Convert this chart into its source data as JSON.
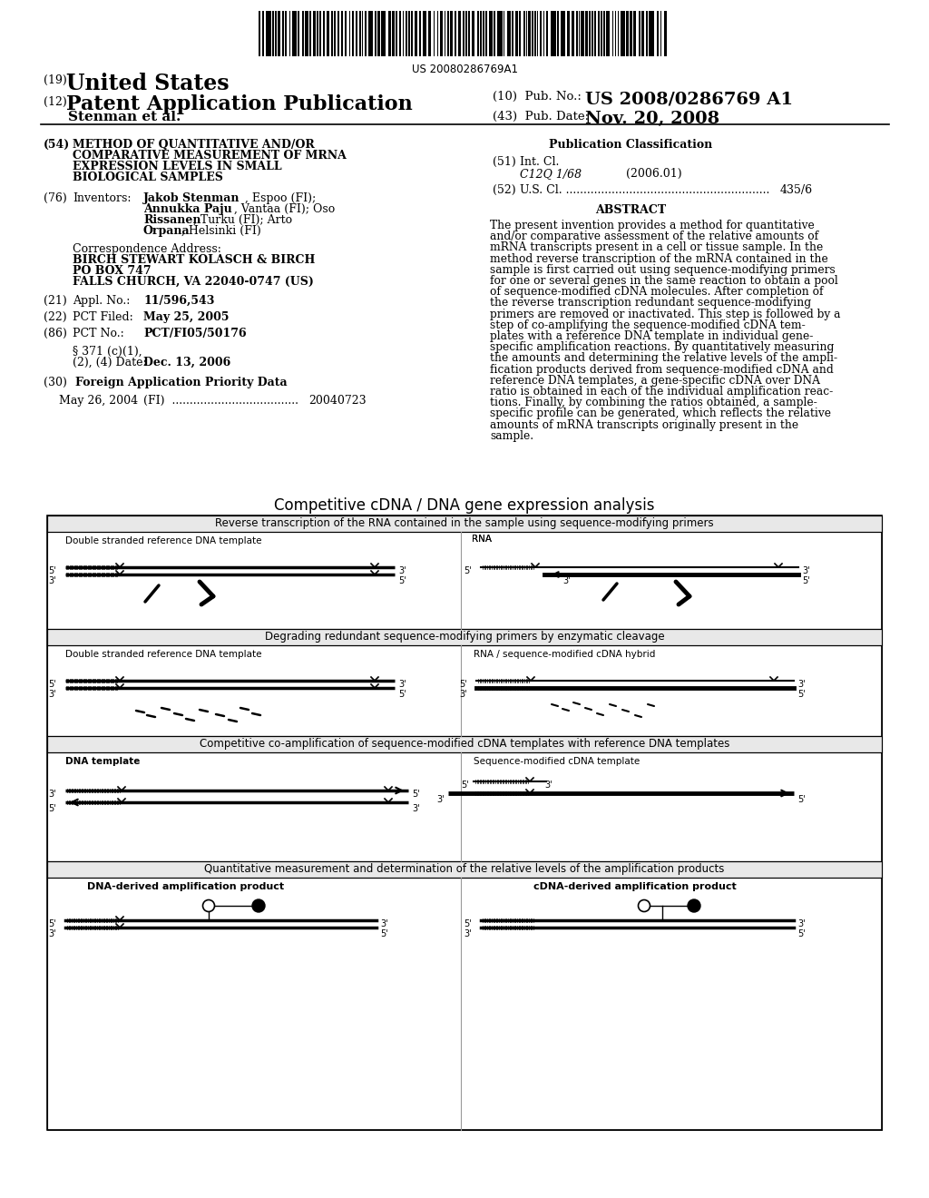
{
  "background_color": "#ffffff",
  "patent_number": "US 20080286769A1",
  "pub_number": "US 2008/0286769 A1",
  "pub_date": "Nov. 20, 2008",
  "diagram_title": "Competitive cDNA / DNA gene expression analysis",
  "row1_header": "Reverse transcription of the RNA contained in the sample using sequence-modifying primers",
  "row1_left_label": "Double stranded reference DNA template",
  "row1_right_label": "RNA",
  "row2_header": "Degrading redundant sequence-modifying primers by enzymatic cleavage",
  "row2_left_label": "Double stranded reference DNA template",
  "row2_right_label": "RNA / sequence-modified cDNA hybrid",
  "row3_header": "Competitive co-amplification of sequence-modified cDNA templates with reference DNA templates",
  "row3_left_label": "DNA template",
  "row3_right_label": "Sequence-modified cDNA template",
  "row4_header": "Quantitative measurement and determination of the relative levels of the amplification products",
  "row4_left_label": "DNA-derived amplification product",
  "row4_right_label": "cDNA-derived amplification product"
}
